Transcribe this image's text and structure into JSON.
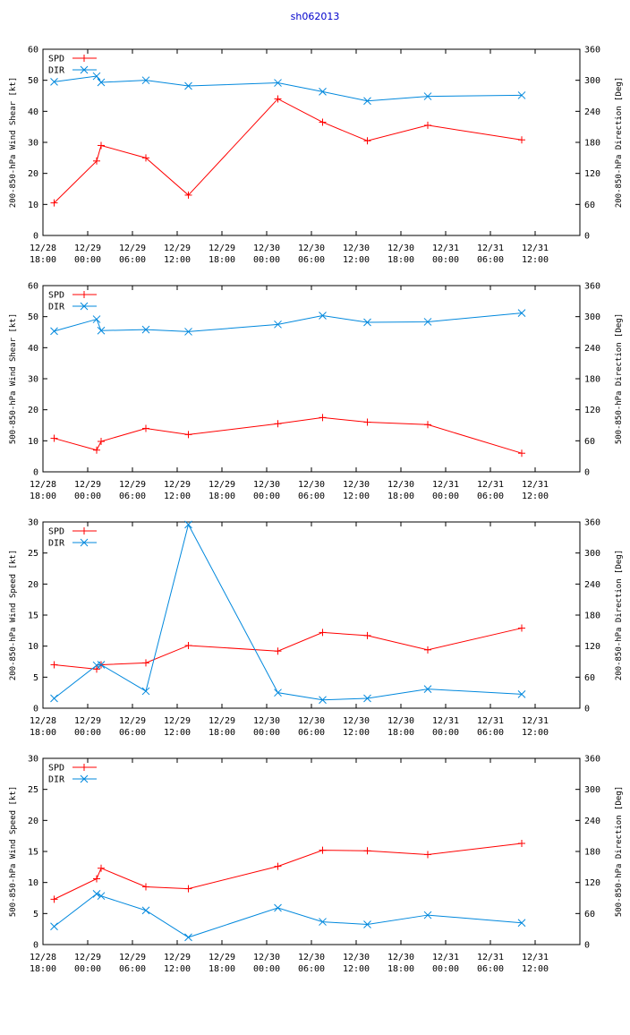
{
  "title": "sh062013",
  "colors": {
    "spd": "#ff0000",
    "dir": "#0088dd",
    "axis": "#000000",
    "grid": "#bbbbbb",
    "title": "#0000cc"
  },
  "chart_data": [
    {
      "type": "line",
      "ylabel": "200-850-hPa Wind Shear [kt]",
      "y2label": "200-850-hPa Direction [Deg]",
      "ylim": [
        0,
        60
      ],
      "yticks": [
        0,
        10,
        20,
        30,
        40,
        50,
        60
      ],
      "y2lim": [
        0,
        360
      ],
      "y2ticks": [
        0,
        60,
        120,
        180,
        240,
        300,
        360
      ],
      "xlim": [
        -6,
        66
      ],
      "xticks": [
        {
          "x": -6,
          "l1": "12/28",
          "l2": "18:00"
        },
        {
          "x": 0,
          "l1": "12/29",
          "l2": "00:00"
        },
        {
          "x": 6,
          "l1": "12/29",
          "l2": "06:00"
        },
        {
          "x": 12,
          "l1": "12/29",
          "l2": "12:00"
        },
        {
          "x": 18,
          "l1": "12/29",
          "l2": "18:00"
        },
        {
          "x": 24,
          "l1": "12/30",
          "l2": "00:00"
        },
        {
          "x": 30,
          "l1": "12/30",
          "l2": "06:00"
        },
        {
          "x": 36,
          "l1": "12/30",
          "l2": "12:00"
        },
        {
          "x": 42,
          "l1": "12/30",
          "l2": "18:00"
        },
        {
          "x": 48,
          "l1": "12/31",
          "l2": "00:00"
        },
        {
          "x": 54,
          "l1": "12/31",
          "l2": "06:00"
        },
        {
          "x": 60,
          "l1": "12/31",
          "l2": "12:00"
        }
      ],
      "legend_position": "top-left",
      "series": [
        {
          "name": "SPD",
          "axis": "left",
          "marker": "plus",
          "x": [
            -4.5,
            1.2,
            1.8,
            7.8,
            13.5,
            25.5,
            31.5,
            37.5,
            45.6,
            58.2
          ],
          "y": [
            10.5,
            24,
            29,
            25,
            13,
            44,
            36.5,
            30.5,
            35.5,
            30.8
          ]
        },
        {
          "name": "DIR",
          "axis": "right",
          "marker": "x",
          "x": [
            -4.5,
            1.2,
            1.8,
            7.8,
            13.5,
            25.5,
            31.5,
            37.5,
            45.6,
            58.2
          ],
          "y": [
            297,
            308,
            296,
            300,
            289,
            295,
            278,
            260,
            269,
            271
          ]
        }
      ]
    },
    {
      "type": "line",
      "ylabel": "500-850-hPa Wind Shear [kt]",
      "y2label": "500-850-hPa Direction [Deg]",
      "ylim": [
        0,
        60
      ],
      "yticks": [
        0,
        10,
        20,
        30,
        40,
        50,
        60
      ],
      "y2lim": [
        0,
        360
      ],
      "y2ticks": [
        0,
        60,
        120,
        180,
        240,
        300,
        360
      ],
      "xlim": [
        -6,
        66
      ],
      "xticks": [
        {
          "x": -6,
          "l1": "12/28",
          "l2": "18:00"
        },
        {
          "x": 0,
          "l1": "12/29",
          "l2": "00:00"
        },
        {
          "x": 6,
          "l1": "12/29",
          "l2": "06:00"
        },
        {
          "x": 12,
          "l1": "12/29",
          "l2": "12:00"
        },
        {
          "x": 18,
          "l1": "12/29",
          "l2": "18:00"
        },
        {
          "x": 24,
          "l1": "12/30",
          "l2": "00:00"
        },
        {
          "x": 30,
          "l1": "12/30",
          "l2": "06:00"
        },
        {
          "x": 36,
          "l1": "12/30",
          "l2": "12:00"
        },
        {
          "x": 42,
          "l1": "12/30",
          "l2": "18:00"
        },
        {
          "x": 48,
          "l1": "12/31",
          "l2": "00:00"
        },
        {
          "x": 54,
          "l1": "12/31",
          "l2": "06:00"
        },
        {
          "x": 60,
          "l1": "12/31",
          "l2": "12:00"
        }
      ],
      "legend_position": "top-left",
      "series": [
        {
          "name": "SPD",
          "axis": "left",
          "marker": "plus",
          "x": [
            -4.5,
            1.2,
            1.8,
            7.8,
            13.5,
            25.5,
            31.5,
            37.5,
            45.6,
            58.2
          ],
          "y": [
            10.8,
            7,
            9.8,
            14,
            12,
            15.5,
            17.5,
            16,
            15.2,
            6
          ]
        },
        {
          "name": "DIR",
          "axis": "right",
          "marker": "x",
          "x": [
            -4.5,
            1.2,
            1.8,
            7.8,
            13.5,
            25.5,
            31.5,
            37.5,
            45.6,
            58.2
          ],
          "y": [
            272,
            295,
            273,
            275,
            271,
            285,
            302,
            289,
            290,
            307
          ]
        }
      ]
    },
    {
      "type": "line",
      "ylabel": "200-850-hPa Wind Speed [kt]",
      "y2label": "200-850-hPa Direction [Deg]",
      "ylim": [
        0,
        30
      ],
      "yticks": [
        0,
        5,
        10,
        15,
        20,
        25,
        30
      ],
      "y2lim": [
        0,
        360
      ],
      "y2ticks": [
        0,
        60,
        120,
        180,
        240,
        300,
        360
      ],
      "xlim": [
        -6,
        66
      ],
      "xticks": [
        {
          "x": -6,
          "l1": "12/28",
          "l2": "18:00"
        },
        {
          "x": 0,
          "l1": "12/29",
          "l2": "00:00"
        },
        {
          "x": 6,
          "l1": "12/29",
          "l2": "06:00"
        },
        {
          "x": 12,
          "l1": "12/29",
          "l2": "12:00"
        },
        {
          "x": 18,
          "l1": "12/29",
          "l2": "18:00"
        },
        {
          "x": 24,
          "l1": "12/30",
          "l2": "00:00"
        },
        {
          "x": 30,
          "l1": "12/30",
          "l2": "06:00"
        },
        {
          "x": 36,
          "l1": "12/30",
          "l2": "12:00"
        },
        {
          "x": 42,
          "l1": "12/30",
          "l2": "18:00"
        },
        {
          "x": 48,
          "l1": "12/31",
          "l2": "00:00"
        },
        {
          "x": 54,
          "l1": "12/31",
          "l2": "06:00"
        },
        {
          "x": 60,
          "l1": "12/31",
          "l2": "12:00"
        }
      ],
      "legend_position": "top-left",
      "series": [
        {
          "name": "SPD",
          "axis": "left",
          "marker": "plus",
          "x": [
            -4.5,
            1.2,
            1.8,
            7.8,
            13.5,
            25.5,
            31.5,
            37.5,
            45.6,
            58.2
          ],
          "y": [
            7,
            6.3,
            7,
            7.3,
            10.1,
            9.2,
            12.2,
            11.7,
            9.4,
            12.9
          ]
        },
        {
          "name": "DIR",
          "axis": "right",
          "marker": "x",
          "x": [
            -4.5,
            1.2,
            1.8,
            7.8,
            13.5,
            25.5,
            31.5,
            37.5,
            45.6,
            58.2
          ],
          "y": [
            19,
            83,
            84,
            33,
            355,
            30,
            16,
            19,
            37,
            27
          ]
        }
      ]
    },
    {
      "type": "line",
      "ylabel": "500-850-hPa Wind Speed [kt]",
      "y2label": "500-850-hPa Direction [Deg]",
      "ylim": [
        0,
        30
      ],
      "yticks": [
        0,
        5,
        10,
        15,
        20,
        25,
        30
      ],
      "y2lim": [
        0,
        360
      ],
      "y2ticks": [
        0,
        60,
        120,
        180,
        240,
        300,
        360
      ],
      "xlim": [
        -6,
        66
      ],
      "xticks": [
        {
          "x": -6,
          "l1": "12/28",
          "l2": "18:00"
        },
        {
          "x": 0,
          "l1": "12/29",
          "l2": "00:00"
        },
        {
          "x": 6,
          "l1": "12/29",
          "l2": "06:00"
        },
        {
          "x": 12,
          "l1": "12/29",
          "l2": "12:00"
        },
        {
          "x": 18,
          "l1": "12/29",
          "l2": "18:00"
        },
        {
          "x": 24,
          "l1": "12/30",
          "l2": "00:00"
        },
        {
          "x": 30,
          "l1": "12/30",
          "l2": "06:00"
        },
        {
          "x": 36,
          "l1": "12/30",
          "l2": "12:00"
        },
        {
          "x": 42,
          "l1": "12/30",
          "l2": "18:00"
        },
        {
          "x": 48,
          "l1": "12/31",
          "l2": "00:00"
        },
        {
          "x": 54,
          "l1": "12/31",
          "l2": "06:00"
        },
        {
          "x": 60,
          "l1": "12/31",
          "l2": "12:00"
        }
      ],
      "legend_position": "top-left",
      "series": [
        {
          "name": "SPD",
          "axis": "left",
          "marker": "plus",
          "x": [
            -4.5,
            1.2,
            1.8,
            7.8,
            13.5,
            25.5,
            31.5,
            37.5,
            45.6,
            58.2
          ],
          "y": [
            7.3,
            10.6,
            12.3,
            9.3,
            9,
            12.6,
            15.2,
            15.1,
            14.5,
            16.3
          ]
        },
        {
          "name": "DIR",
          "axis": "right",
          "marker": "x",
          "x": [
            -4.5,
            1.2,
            1.8,
            7.8,
            13.5,
            25.5,
            31.5,
            37.5,
            45.6,
            58.2
          ],
          "y": [
            35,
            98,
            94,
            66,
            14,
            71,
            44,
            39,
            57,
            42
          ]
        }
      ]
    }
  ]
}
